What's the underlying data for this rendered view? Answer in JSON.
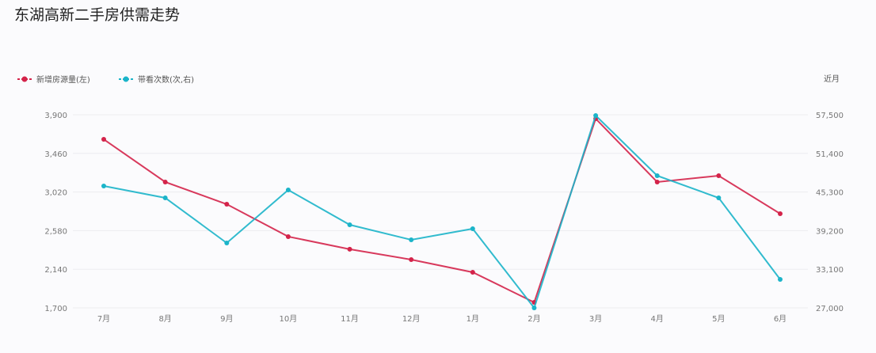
{
  "chart_data": {
    "type": "line",
    "title": "东湖高新二手房供需走势",
    "categories": [
      "7月",
      "8月",
      "9月",
      "10月",
      "11月",
      "12月",
      "1月",
      "2月",
      "3月",
      "4月",
      "5月",
      "6月"
    ],
    "y_left": {
      "ticks": [
        "3,900",
        "3,460",
        "3,020",
        "2,580",
        "2,140",
        "1,700"
      ],
      "range": [
        1700,
        3900
      ]
    },
    "y_right": {
      "label": "近月",
      "ticks": [
        "57,500",
        "51,400",
        "45,300",
        "39,200",
        "33,100",
        "27,000"
      ],
      "range": [
        27000,
        57500
      ]
    },
    "series": [
      {
        "name": "新增房源量(左)",
        "axis": "left",
        "color": "#d4234a",
        "values": [
          3620,
          3134,
          2881,
          2512,
          2368,
          2250,
          2106,
          1763,
          3855,
          3134,
          3206,
          2773
        ]
      },
      {
        "name": "带看次数(次,右)",
        "axis": "right",
        "color": "#1bb4c9",
        "values": [
          46250,
          44375,
          37250,
          45625,
          40125,
          37750,
          39500,
          27000,
          57375,
          47875,
          44375,
          31500
        ]
      }
    ],
    "grid": true,
    "legend": "top-left"
  }
}
